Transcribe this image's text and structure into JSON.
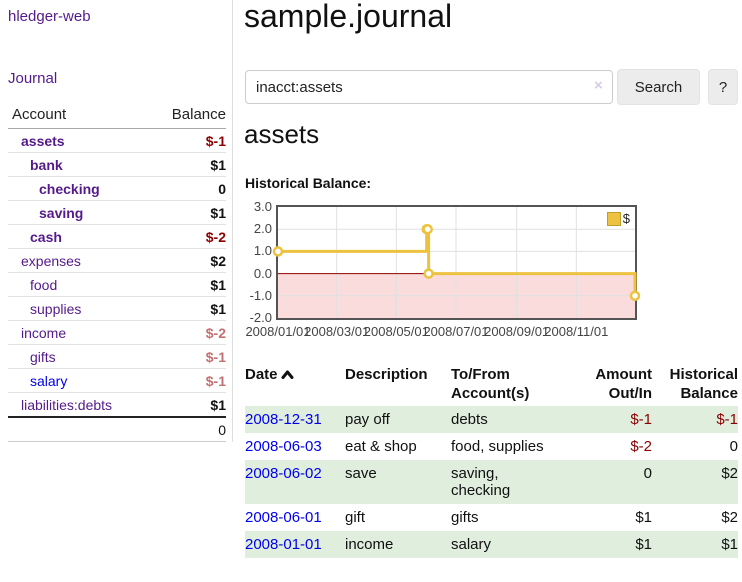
{
  "sidebar": {
    "brand": "hledger-web",
    "journal_link": "Journal",
    "accounts_table": {
      "headers": {
        "account": "Account",
        "balance": "Balance"
      },
      "rows": [
        {
          "name": "assets",
          "balance": "$-1",
          "level": 1,
          "bold": true,
          "name_style": "purple",
          "balance_style": "negative"
        },
        {
          "name": "bank",
          "balance": "$1",
          "level": 2,
          "bold": true,
          "name_style": "purple",
          "balance_style": "normal"
        },
        {
          "name": "checking",
          "balance": "0",
          "level": 3,
          "bold": true,
          "name_style": "purple",
          "balance_style": "normal"
        },
        {
          "name": "saving",
          "balance": "$1",
          "level": 3,
          "bold": true,
          "name_style": "purple",
          "balance_style": "normal"
        },
        {
          "name": "cash",
          "balance": "$-2",
          "level": 2,
          "bold": true,
          "name_style": "purple",
          "balance_style": "negative"
        },
        {
          "name": "expenses",
          "balance": "$2",
          "level": 1,
          "bold": false,
          "name_style": "purple",
          "balance_style": "normal"
        },
        {
          "name": "food",
          "balance": "$1",
          "level": 2,
          "bold": false,
          "name_style": "purple",
          "balance_style": "normal"
        },
        {
          "name": "supplies",
          "balance": "$1",
          "level": 2,
          "bold": false,
          "name_style": "purple",
          "balance_style": "normal"
        },
        {
          "name": "income",
          "balance": "$-2",
          "level": 1,
          "bold": false,
          "name_style": "purple",
          "balance_style": "soft-negative"
        },
        {
          "name": "gifts",
          "balance": "$-1",
          "level": 2,
          "bold": false,
          "name_style": "purple",
          "balance_style": "soft-negative"
        },
        {
          "name": "salary",
          "balance": "$-1",
          "level": 2,
          "bold": false,
          "name_style": "blue",
          "balance_style": "soft-negative"
        },
        {
          "name": "liabilities:debts",
          "balance": "$1",
          "level": 1,
          "bold": false,
          "name_style": "purple",
          "balance_style": "normal"
        }
      ],
      "total": "0"
    }
  },
  "header": {
    "title": "sample.journal",
    "search": {
      "value": "inacct:assets",
      "clear_icon": "×",
      "button": "Search",
      "help_button": "?"
    }
  },
  "main": {
    "account_heading": "assets",
    "chart_label": "Historical Balance:"
  },
  "chart_data": {
    "type": "line",
    "step": true,
    "title": "Historical Balance",
    "x_range": [
      "2008-01-01",
      "2008-12-31"
    ],
    "ylim": [
      -2,
      3
    ],
    "y_ticks": [
      "3.0",
      "2.0",
      "1.0",
      "0.0",
      "-1.0",
      "-2.0"
    ],
    "x_ticks": [
      {
        "date": "2008-01-01",
        "label": "2008/01/01"
      },
      {
        "date": "2008-03-01",
        "label": "2008/03/01"
      },
      {
        "date": "2008-05-01",
        "label": "2008/05/01"
      },
      {
        "date": "2008-07-01",
        "label": "2008/07/01"
      },
      {
        "date": "2008-09-01",
        "label": "2008/09/01"
      },
      {
        "date": "2008-11-01",
        "label": "2008/11/01"
      }
    ],
    "series": [
      {
        "name": "$",
        "color": "#edc240",
        "points": [
          [
            "2008-01-01",
            1
          ],
          [
            "2008-06-01",
            2
          ],
          [
            "2008-06-02",
            2
          ],
          [
            "2008-06-03",
            0
          ],
          [
            "2008-12-31",
            -1
          ]
        ]
      }
    ],
    "grid_color": "#e0e0e0",
    "zero_line_color": "#8b0000",
    "negative_region_color": "#fbdcdc",
    "legend": {
      "label": "$",
      "position": "top-right"
    }
  },
  "transactions": {
    "headers": {
      "date": "Date",
      "description": "Description",
      "accounts": "To/From Account(s)",
      "amount": "Amount Out/In",
      "balance": "Historical Balance"
    },
    "rows": [
      {
        "date": "2008-12-31",
        "description": "pay off",
        "accounts": "debts",
        "amount": "$-1",
        "amount_style": "negative",
        "balance": "$-1",
        "balance_style": "negative"
      },
      {
        "date": "2008-06-03",
        "description": "eat & shop",
        "accounts": "food, supplies",
        "amount": "$-2",
        "amount_style": "negative",
        "balance": "0",
        "balance_style": "normal"
      },
      {
        "date": "2008-06-02",
        "description": "save",
        "accounts": "saving,\nchecking",
        "amount": "0",
        "amount_style": "normal",
        "balance": "$2",
        "balance_style": "normal"
      },
      {
        "date": "2008-06-01",
        "description": "gift",
        "accounts": "gifts",
        "amount": "$1",
        "amount_style": "normal",
        "balance": "$2",
        "balance_style": "normal"
      },
      {
        "date": "2008-01-01",
        "description": "income",
        "accounts": "salary",
        "amount": "$1",
        "amount_style": "normal",
        "balance": "$1",
        "balance_style": "normal"
      }
    ]
  }
}
